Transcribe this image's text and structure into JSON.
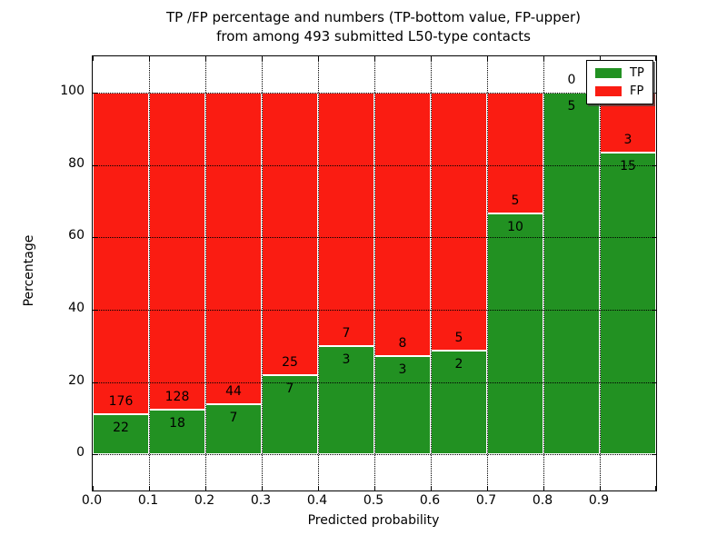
{
  "chart_data": {
    "type": "bar",
    "stacked": true,
    "normalized": "each bin scaled to 100%",
    "title_line1": "TP /FP percentage and numbers (TP-bottom value, FP-upper)",
    "title_line2": "from among 493 submitted L50-type contacts",
    "total_contacts_in_title": 493,
    "xlabel": "Predicted probability",
    "ylabel": "Percentage",
    "xlim": [
      0.0,
      1.0
    ],
    "ylim": [
      -10,
      110
    ],
    "grid": true,
    "categories": [
      "0.0-0.1",
      "0.1-0.2",
      "0.2-0.3",
      "0.3-0.4",
      "0.4-0.5",
      "0.5-0.6",
      "0.6-0.7",
      "0.7-0.8",
      "0.8-0.9",
      "0.9-1.0"
    ],
    "x_tick_labels": [
      "0.0",
      "0.1",
      "0.2",
      "0.3",
      "0.4",
      "0.5",
      "0.6",
      "0.7",
      "0.8",
      "0.9"
    ],
    "y_tick_labels": [
      "0",
      "20",
      "40",
      "60",
      "80",
      "100"
    ],
    "y_tick_values": [
      0,
      20,
      40,
      60,
      80,
      100
    ],
    "series": [
      {
        "name": "TP",
        "color": "#229122",
        "position": "bottom",
        "counts": [
          22,
          18,
          7,
          7,
          3,
          3,
          2,
          10,
          5,
          15
        ],
        "percent": [
          11.1,
          12.3,
          13.7,
          21.9,
          30.0,
          27.3,
          28.6,
          66.7,
          100.0,
          83.3
        ]
      },
      {
        "name": "FP",
        "color": "#fa1c12",
        "position": "top",
        "counts": [
          176,
          128,
          44,
          25,
          7,
          8,
          5,
          5,
          0,
          3
        ],
        "percent": [
          88.9,
          87.7,
          86.3,
          78.1,
          70.0,
          72.7,
          71.4,
          33.3,
          0.0,
          16.7
        ]
      }
    ],
    "legend": {
      "position": "upper right",
      "entries": [
        {
          "label": "TP",
          "color": "#229122"
        },
        {
          "label": "FP",
          "color": "#fa1c12"
        }
      ]
    },
    "colors": {
      "background": "#ffffff",
      "grid": "#000000",
      "bar_edge": "#ffffff",
      "text": "#000000"
    }
  }
}
